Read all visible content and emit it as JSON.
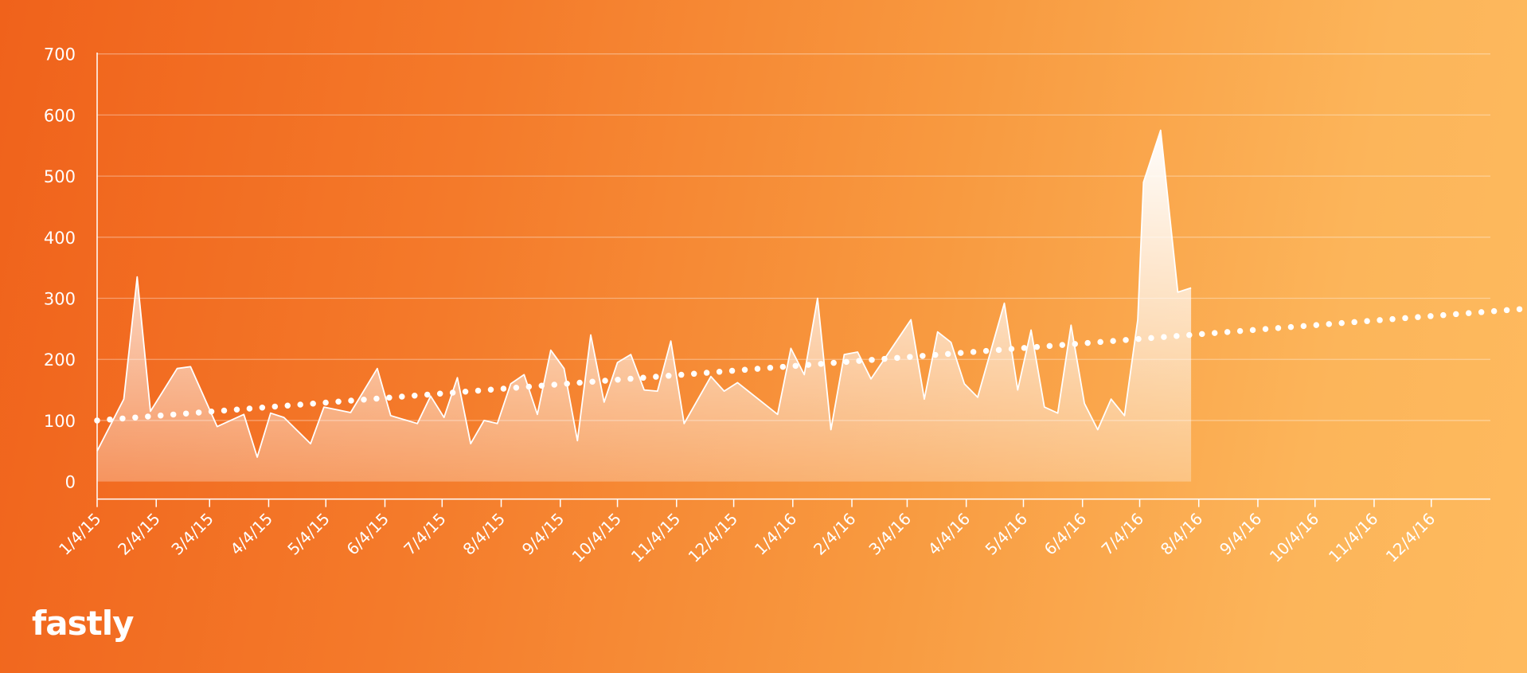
{
  "brand": {
    "logo_text": "fastly"
  },
  "colors": {
    "background_start": "#f0621b",
    "background_end": "#feba5e",
    "area_fill": "#ffffff",
    "trend_dots": "#ffffff"
  },
  "chart_data": {
    "type": "area",
    "title": "",
    "xlabel": "",
    "ylabel": "",
    "ylim": [
      -20,
      710
    ],
    "xlim": [
      "2015-01-04",
      "2017-01-04"
    ],
    "grid": true,
    "y_ticks": [
      0,
      100,
      200,
      300,
      400,
      500,
      600,
      700
    ],
    "x_ticks": [
      {
        "label": "1/4/15",
        "date": "2015-01-04"
      },
      {
        "label": "2/4/15",
        "date": "2015-02-04"
      },
      {
        "label": "3/4/15",
        "date": "2015-03-04"
      },
      {
        "label": "4/4/15",
        "date": "2015-04-04"
      },
      {
        "label": "5/4/15",
        "date": "2015-05-04"
      },
      {
        "label": "6/4/15",
        "date": "2015-06-04"
      },
      {
        "label": "7/4/15",
        "date": "2015-07-04"
      },
      {
        "label": "8/4/15",
        "date": "2015-08-04"
      },
      {
        "label": "9/4/15",
        "date": "2015-09-04"
      },
      {
        "label": "10/4/15",
        "date": "2015-10-04"
      },
      {
        "label": "11/4/15",
        "date": "2015-11-04"
      },
      {
        "label": "12/4/15",
        "date": "2015-12-04"
      },
      {
        "label": "1/4/16",
        "date": "2016-01-04"
      },
      {
        "label": "2/4/16",
        "date": "2016-02-04"
      },
      {
        "label": "3/4/16",
        "date": "2016-03-04"
      },
      {
        "label": "4/4/16",
        "date": "2016-04-04"
      },
      {
        "label": "5/4/16",
        "date": "2016-05-04"
      },
      {
        "label": "6/4/16",
        "date": "2016-06-04"
      },
      {
        "label": "7/4/16",
        "date": "2016-07-04"
      },
      {
        "label": "8/4/16",
        "date": "2016-08-04"
      },
      {
        "label": "9/4/16",
        "date": "2016-09-04"
      },
      {
        "label": "10/4/16",
        "date": "2016-10-04"
      },
      {
        "label": "11/4/16",
        "date": "2016-11-04"
      },
      {
        "label": "12/4/16",
        "date": "2016-12-04"
      }
    ],
    "series": [
      {
        "type": "area",
        "points": [
          [
            "2015-01-04",
            50
          ],
          [
            "2015-01-18",
            135
          ],
          [
            "2015-01-25",
            335
          ],
          [
            "2015-02-01",
            115
          ],
          [
            "2015-02-15",
            185
          ],
          [
            "2015-02-22",
            188
          ],
          [
            "2015-03-08",
            90
          ],
          [
            "2015-03-22",
            110
          ],
          [
            "2015-03-29",
            40
          ],
          [
            "2015-04-05",
            112
          ],
          [
            "2015-04-12",
            105
          ],
          [
            "2015-04-26",
            62
          ],
          [
            "2015-05-03",
            122
          ],
          [
            "2015-05-17",
            113
          ],
          [
            "2015-05-31",
            185
          ],
          [
            "2015-06-07",
            108
          ],
          [
            "2015-06-21",
            95
          ],
          [
            "2015-06-28",
            140
          ],
          [
            "2015-07-05",
            105
          ],
          [
            "2015-07-12",
            170
          ],
          [
            "2015-07-19",
            62
          ],
          [
            "2015-07-26",
            100
          ],
          [
            "2015-08-02",
            95
          ],
          [
            "2015-08-09",
            160
          ],
          [
            "2015-08-16",
            175
          ],
          [
            "2015-08-23",
            110
          ],
          [
            "2015-08-30",
            215
          ],
          [
            "2015-09-06",
            185
          ],
          [
            "2015-09-13",
            67
          ],
          [
            "2015-09-20",
            240
          ],
          [
            "2015-09-27",
            130
          ],
          [
            "2015-10-04",
            195
          ],
          [
            "2015-10-11",
            208
          ],
          [
            "2015-10-18",
            150
          ],
          [
            "2015-10-25",
            148
          ],
          [
            "2015-11-01",
            230
          ],
          [
            "2015-11-08",
            95
          ],
          [
            "2015-11-22",
            172
          ],
          [
            "2015-11-29",
            148
          ],
          [
            "2015-12-06",
            162
          ],
          [
            "2015-12-27",
            110
          ],
          [
            "2016-01-03",
            218
          ],
          [
            "2016-01-10",
            175
          ],
          [
            "2016-01-17",
            300
          ],
          [
            "2016-01-24",
            85
          ],
          [
            "2016-01-31",
            208
          ],
          [
            "2016-02-07",
            212
          ],
          [
            "2016-02-14",
            168
          ],
          [
            "2016-03-06",
            265
          ],
          [
            "2016-03-13",
            135
          ],
          [
            "2016-03-20",
            245
          ],
          [
            "2016-03-27",
            228
          ],
          [
            "2016-04-03",
            160
          ],
          [
            "2016-04-10",
            138
          ],
          [
            "2016-04-24",
            292
          ],
          [
            "2016-05-01",
            150
          ],
          [
            "2016-05-08",
            248
          ],
          [
            "2016-05-15",
            122
          ],
          [
            "2016-05-22",
            112
          ],
          [
            "2016-05-29",
            256
          ],
          [
            "2016-06-05",
            128
          ],
          [
            "2016-06-12",
            85
          ],
          [
            "2016-06-19",
            135
          ],
          [
            "2016-06-26",
            108
          ],
          [
            "2016-07-03",
            265
          ],
          [
            "2016-07-06",
            490
          ],
          [
            "2016-07-15",
            575
          ],
          [
            "2016-07-24",
            310
          ],
          [
            "2016-07-31",
            317
          ]
        ]
      },
      {
        "type": "trendline",
        "style": "dotted",
        "points": [
          [
            "2015-01-04",
            100
          ],
          [
            "2017-02-08",
            287
          ]
        ]
      }
    ]
  }
}
